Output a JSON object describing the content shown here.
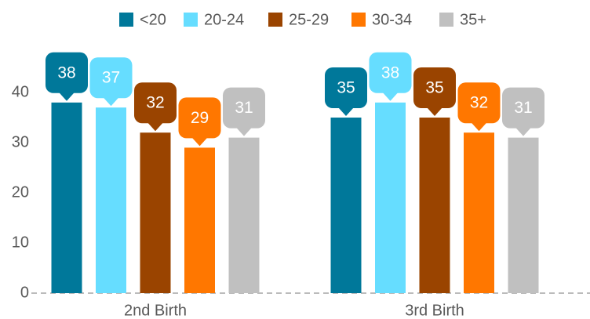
{
  "chart_data": {
    "type": "bar",
    "categories": [
      "2nd Birth",
      "3rd Birth"
    ],
    "series": [
      {
        "name": "<20",
        "color": "#00789a",
        "values": [
          38,
          35
        ]
      },
      {
        "name": "20-24",
        "color": "#66ddff",
        "values": [
          37,
          38
        ]
      },
      {
        "name": "25-29",
        "color": "#9a4400",
        "values": [
          32,
          35
        ]
      },
      {
        "name": "30-34",
        "color": "#ff7700",
        "values": [
          29,
          32
        ]
      },
      {
        "name": "35+",
        "color": "#c0c0c0",
        "values": [
          31,
          31
        ]
      }
    ],
    "ylim": [
      0,
      50
    ],
    "yticks": [
      0,
      10,
      20,
      30,
      40
    ],
    "grid": false,
    "legend": "top"
  }
}
